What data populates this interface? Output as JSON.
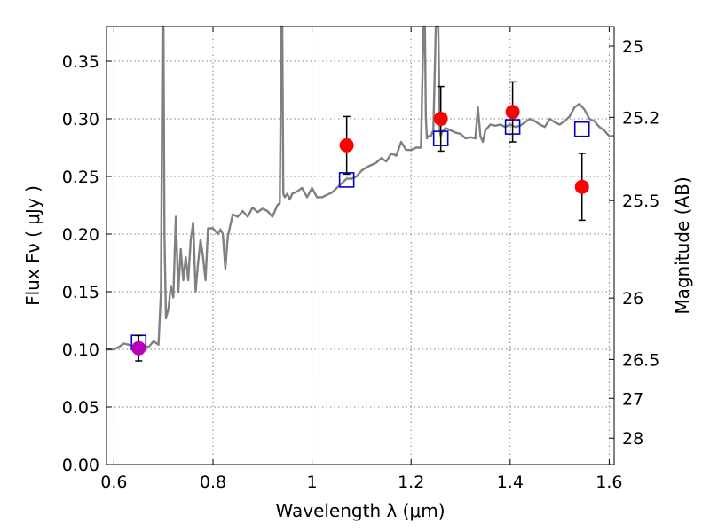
{
  "chart_data": {
    "type": "line",
    "xlabel": "Wavelength  λ (μm)",
    "ylabel": "Flux  Fν  ( μJy )",
    "ylabel_right": "Magnitude (AB)",
    "xlim": [
      0.585,
      1.61
    ],
    "ylim": [
      0.0,
      0.38
    ],
    "grid": true,
    "x_ticks": [
      {
        "value": 0.6,
        "label": "0.6"
      },
      {
        "value": 0.8,
        "label": "0.8"
      },
      {
        "value": 1.0,
        "label": "1"
      },
      {
        "value": 1.2,
        "label": "1.2"
      },
      {
        "value": 1.4,
        "label": "1.4"
      },
      {
        "value": 1.6,
        "label": "1.6"
      }
    ],
    "y_ticks": [
      {
        "value": 0.0,
        "label": "0.00"
      },
      {
        "value": 0.05,
        "label": "0.05"
      },
      {
        "value": 0.1,
        "label": "0.10"
      },
      {
        "value": 0.15,
        "label": "0.15"
      },
      {
        "value": 0.2,
        "label": "0.20"
      },
      {
        "value": 0.25,
        "label": "0.25"
      },
      {
        "value": 0.3,
        "label": "0.30"
      },
      {
        "value": 0.35,
        "label": "0.35"
      }
    ],
    "right_ticks": [
      {
        "flux": 0.3631,
        "label": "25"
      },
      {
        "flux": 0.3013,
        "label": "25.2"
      },
      {
        "flux": 0.2291,
        "label": "25.5"
      },
      {
        "flux": 0.1445,
        "label": "26"
      },
      {
        "flux": 0.0912,
        "label": "26.5"
      },
      {
        "flux": 0.0575,
        "label": "27"
      },
      {
        "flux": 0.0229,
        "label": "28"
      }
    ],
    "colors": {
      "template": "#808080",
      "model_box": "#0000cc",
      "observed": "#ff0000",
      "observed_first": "#bb00bb",
      "errorbar": "#000000",
      "grid": "#808080"
    },
    "series": [
      {
        "type": "line",
        "x": [
          0.585,
          0.6,
          0.61,
          0.62,
          0.63,
          0.64,
          0.65,
          0.66,
          0.67,
          0.68,
          0.69,
          0.695,
          0.698,
          0.7,
          0.702,
          0.705,
          0.71,
          0.715,
          0.72,
          0.725,
          0.73,
          0.735,
          0.74,
          0.745,
          0.75,
          0.755,
          0.76,
          0.765,
          0.77,
          0.775,
          0.78,
          0.785,
          0.79,
          0.8,
          0.81,
          0.815,
          0.82,
          0.825,
          0.83,
          0.84,
          0.85,
          0.86,
          0.87,
          0.88,
          0.89,
          0.9,
          0.91,
          0.92,
          0.93,
          0.935,
          0.938,
          0.94,
          0.942,
          0.945,
          0.95,
          0.955,
          0.96,
          0.97,
          0.98,
          0.99,
          1.0,
          1.01,
          1.02,
          1.03,
          1.04,
          1.05,
          1.06,
          1.07,
          1.08,
          1.09,
          1.1,
          1.11,
          1.12,
          1.13,
          1.14,
          1.15,
          1.16,
          1.17,
          1.18,
          1.19,
          1.2,
          1.21,
          1.22,
          1.225,
          1.228,
          1.23,
          1.232,
          1.235,
          1.24,
          1.245,
          1.25,
          1.255,
          1.258,
          1.26,
          1.262,
          1.265,
          1.27,
          1.28,
          1.29,
          1.3,
          1.31,
          1.32,
          1.33,
          1.335,
          1.34,
          1.345,
          1.35,
          1.36,
          1.37,
          1.38,
          1.39,
          1.4,
          1.41,
          1.42,
          1.43,
          1.44,
          1.45,
          1.46,
          1.47,
          1.48,
          1.49,
          1.5,
          1.51,
          1.52,
          1.53,
          1.54,
          1.55,
          1.56,
          1.57,
          1.58,
          1.59,
          1.6,
          1.61
        ],
        "y": [
          0.1,
          0.1,
          0.102,
          0.105,
          0.104,
          0.102,
          0.101,
          0.103,
          0.102,
          0.107,
          0.104,
          0.15,
          0.38,
          0.38,
          0.2,
          0.127,
          0.135,
          0.155,
          0.145,
          0.215,
          0.15,
          0.187,
          0.16,
          0.18,
          0.16,
          0.195,
          0.21,
          0.15,
          0.175,
          0.195,
          0.18,
          0.16,
          0.205,
          0.205,
          0.2,
          0.204,
          0.2,
          0.17,
          0.198,
          0.217,
          0.215,
          0.22,
          0.215,
          0.223,
          0.219,
          0.222,
          0.22,
          0.215,
          0.225,
          0.227,
          0.38,
          0.38,
          0.235,
          0.232,
          0.235,
          0.23,
          0.235,
          0.237,
          0.24,
          0.232,
          0.24,
          0.232,
          0.232,
          0.234,
          0.236,
          0.24,
          0.244,
          0.248,
          0.248,
          0.25,
          0.255,
          0.258,
          0.26,
          0.262,
          0.266,
          0.263,
          0.27,
          0.268,
          0.28,
          0.273,
          0.273,
          0.275,
          0.275,
          0.38,
          0.38,
          0.3,
          0.283,
          0.285,
          0.285,
          0.29,
          0.38,
          0.38,
          0.29,
          0.285,
          0.288,
          0.29,
          0.292,
          0.29,
          0.288,
          0.287,
          0.283,
          0.284,
          0.283,
          0.31,
          0.285,
          0.28,
          0.29,
          0.295,
          0.294,
          0.295,
          0.293,
          0.295,
          0.293,
          0.294,
          0.297,
          0.3,
          0.298,
          0.295,
          0.293,
          0.3,
          0.297,
          0.295,
          0.298,
          0.302,
          0.31,
          0.313,
          0.308,
          0.3,
          0.298,
          0.293,
          0.29,
          0.285,
          0.285
        ]
      },
      {
        "type": "scatter-box",
        "x": [
          0.65,
          1.07,
          1.26,
          1.405,
          1.545
        ],
        "y": [
          0.106,
          0.247,
          0.283,
          0.293,
          0.291
        ]
      },
      {
        "type": "scatter-errorbar",
        "x": [
          0.65,
          1.07,
          1.26,
          1.405,
          1.545
        ],
        "y": [
          0.101,
          0.277,
          0.3,
          0.306,
          0.241
        ],
        "yerr": [
          0.011,
          0.025,
          0.028,
          0.026,
          0.029
        ]
      }
    ]
  }
}
